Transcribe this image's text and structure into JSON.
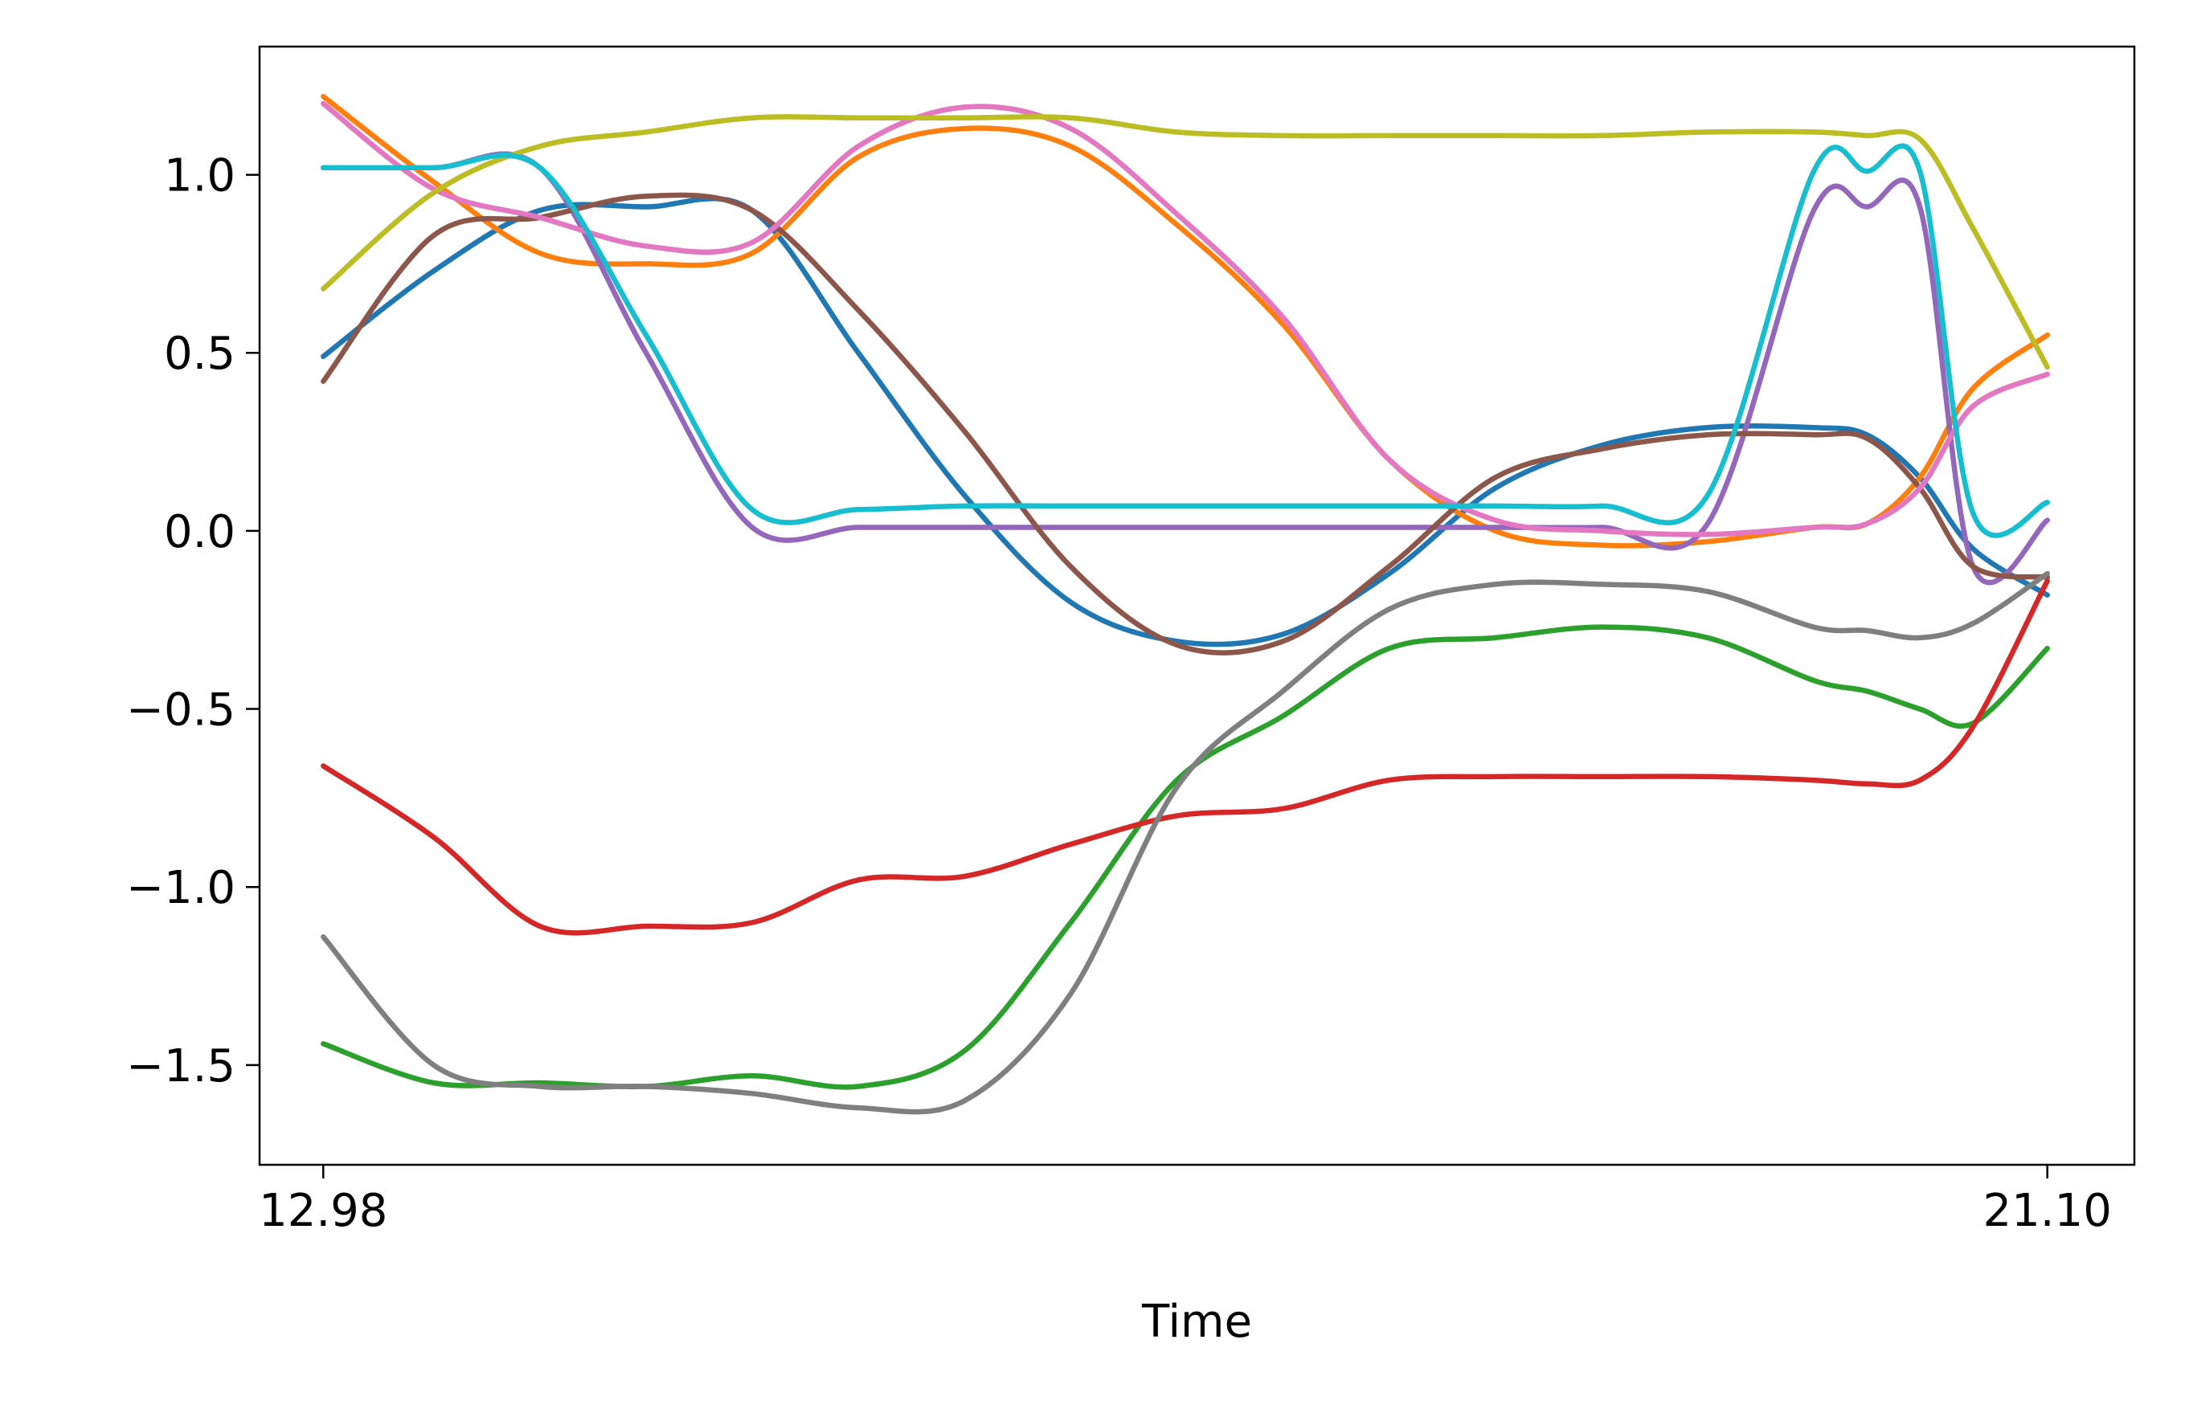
{
  "chart_data": {
    "type": "line",
    "title": "",
    "xlabel": "Time",
    "ylabel": "",
    "xlim": [
      12.68,
      21.51
    ],
    "ylim": [
      -1.78,
      1.36
    ],
    "x_ticks": [
      {
        "value": 12.98,
        "label": "12.98"
      },
      {
        "value": 21.1,
        "label": "21.10"
      }
    ],
    "y_ticks": [
      {
        "value": 1.0,
        "label": "1.0"
      },
      {
        "value": 0.5,
        "label": "0.5"
      },
      {
        "value": 0.0,
        "label": "0.0"
      },
      {
        "value": -0.5,
        "label": "−0.5"
      },
      {
        "value": -1.0,
        "label": "−1.0"
      },
      {
        "value": -1.5,
        "label": "−1.5"
      }
    ],
    "grid": false,
    "legend": "none",
    "x": [
      12.98,
      13.5,
      14.0,
      14.5,
      15.0,
      15.5,
      16.0,
      16.5,
      17.0,
      17.5,
      18.0,
      18.5,
      19.0,
      19.5,
      20.0,
      20.25,
      20.5,
      20.75,
      21.1
    ],
    "series": [
      {
        "color": "#1f77b4",
        "values": [
          0.49,
          0.73,
          0.9,
          0.91,
          0.9,
          0.5,
          0.1,
          -0.2,
          -0.31,
          -0.29,
          -0.12,
          0.12,
          0.24,
          0.29,
          0.29,
          0.27,
          0.15,
          -0.05,
          -0.18
        ]
      },
      {
        "color": "#ff7f0e",
        "values": [
          1.22,
          0.98,
          0.78,
          0.75,
          0.78,
          1.05,
          1.13,
          1.08,
          0.86,
          0.58,
          0.2,
          0.0,
          -0.04,
          -0.03,
          0.01,
          0.02,
          0.15,
          0.4,
          0.55
        ]
      },
      {
        "color": "#2ca02c",
        "values": [
          -1.44,
          -1.55,
          -1.55,
          -1.56,
          -1.53,
          -1.56,
          -1.46,
          -1.1,
          -0.7,
          -0.52,
          -0.33,
          -0.3,
          -0.27,
          -0.3,
          -0.42,
          -0.45,
          -0.5,
          -0.54,
          -0.33
        ]
      },
      {
        "color": "#d62728",
        "values": [
          -0.66,
          -0.86,
          -1.11,
          -1.11,
          -1.1,
          -0.98,
          -0.97,
          -0.88,
          -0.8,
          -0.78,
          -0.7,
          -0.69,
          -0.69,
          -0.69,
          -0.7,
          -0.71,
          -0.7,
          -0.55,
          -0.14
        ]
      },
      {
        "color": "#9467bd",
        "values": [
          1.02,
          1.02,
          1.02,
          0.5,
          0.01,
          0.01,
          0.01,
          0.01,
          0.01,
          0.01,
          0.01,
          0.01,
          0.01,
          0.02,
          0.9,
          0.91,
          0.91,
          -0.1,
          0.03
        ]
      },
      {
        "color": "#8c564b",
        "values": [
          0.42,
          0.83,
          0.88,
          0.94,
          0.9,
          0.62,
          0.28,
          -0.1,
          -0.32,
          -0.31,
          -0.1,
          0.15,
          0.23,
          0.27,
          0.27,
          0.26,
          0.12,
          -0.1,
          -0.13
        ]
      },
      {
        "color": "#e377c2",
        "values": [
          1.2,
          0.96,
          0.88,
          0.8,
          0.81,
          1.08,
          1.19,
          1.13,
          0.89,
          0.6,
          0.2,
          0.03,
          0.0,
          -0.01,
          0.01,
          0.02,
          0.12,
          0.35,
          0.44
        ]
      },
      {
        "color": "#7f7f7f",
        "values": [
          -1.14,
          -1.5,
          -1.56,
          -1.56,
          -1.58,
          -1.62,
          -1.6,
          -1.3,
          -0.72,
          -0.45,
          -0.22,
          -0.15,
          -0.15,
          -0.17,
          -0.27,
          -0.28,
          -0.3,
          -0.26,
          -0.12
        ]
      },
      {
        "color": "#bcbd22",
        "values": [
          0.68,
          0.95,
          1.08,
          1.12,
          1.16,
          1.16,
          1.16,
          1.16,
          1.12,
          1.11,
          1.11,
          1.11,
          1.11,
          1.12,
          1.12,
          1.11,
          1.1,
          0.85,
          0.46
        ]
      },
      {
        "color": "#17becf",
        "values": [
          1.02,
          1.02,
          1.02,
          0.55,
          0.06,
          0.06,
          0.07,
          0.07,
          0.07,
          0.07,
          0.07,
          0.07,
          0.07,
          0.1,
          1.01,
          1.01,
          1.01,
          0.05,
          0.08
        ]
      }
    ]
  }
}
